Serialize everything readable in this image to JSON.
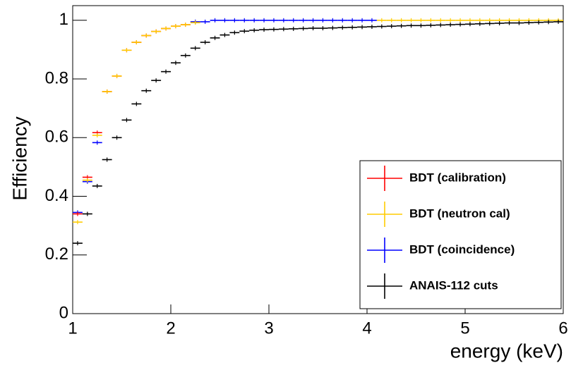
{
  "chart_data": {
    "type": "histogram-points",
    "x_label": "energy (keV)",
    "y_label": "Efficiency",
    "xlim": [
      1,
      6
    ],
    "xticks": [
      1,
      2,
      3,
      4,
      5,
      6
    ],
    "ylim": [
      0,
      1.05
    ],
    "yticks": [
      0,
      0.2,
      0.4,
      0.6,
      0.8,
      1
    ],
    "legend": "bottom-right",
    "series": [
      {
        "name": "BDT (coincidence)",
        "color": "#0000ff",
        "x": [
          1.05,
          1.15,
          1.25,
          2.25,
          2.35,
          2.45,
          2.55,
          2.65,
          2.75,
          2.85,
          2.95,
          3.05,
          3.15,
          3.25,
          3.35,
          3.45,
          3.55,
          3.65,
          3.75,
          3.85,
          3.95,
          4.05
        ],
        "values": [
          0.345,
          0.45,
          0.583,
          0.995,
          0.995,
          1,
          1,
          1,
          1,
          1,
          1,
          1,
          1,
          1,
          1,
          1,
          1,
          1,
          1,
          1,
          1,
          1
        ]
      },
      {
        "name": "BDT (calibration)",
        "color": "#ff0000",
        "x": [
          1.05,
          1.15,
          1.25,
          1.35,
          1.45,
          1.55,
          1.65,
          1.75,
          1.85,
          1.95,
          2.05,
          2.15
        ],
        "values": [
          0.34,
          0.465,
          0.617,
          0.757,
          0.81,
          0.898,
          0.925,
          0.948,
          0.962,
          0.972,
          0.98,
          0.985
        ]
      },
      {
        "name": "BDT (neutron cal)",
        "color": "#ffcc00",
        "x": [
          1.05,
          1.15,
          1.25,
          1.35,
          1.45,
          1.55,
          1.65,
          1.75,
          1.85,
          1.95,
          2.05,
          2.15,
          2.25,
          4.15,
          4.25,
          4.35,
          4.45,
          4.55,
          4.65,
          4.75,
          4.85,
          4.95,
          5.05,
          5.15,
          5.25,
          5.35,
          5.45,
          5.55,
          5.65,
          5.75,
          5.85,
          5.95
        ],
        "values": [
          0.312,
          0.455,
          0.608,
          0.757,
          0.81,
          0.898,
          0.925,
          0.948,
          0.962,
          0.972,
          0.98,
          0.985,
          0.992,
          1,
          1,
          1,
          1,
          1,
          1,
          1,
          1,
          1,
          1,
          1,
          1,
          1,
          1,
          1,
          1,
          1,
          1,
          1
        ]
      },
      {
        "name": "ANAIS-112 cuts",
        "color": "#000000",
        "x": [
          1.05,
          1.15,
          1.25,
          1.35,
          1.45,
          1.55,
          1.65,
          1.75,
          1.85,
          1.95,
          2.05,
          2.15,
          2.25,
          2.35,
          2.45,
          2.55,
          2.65,
          2.75,
          2.85,
          2.95,
          3.05,
          3.15,
          3.25,
          3.35,
          3.45,
          3.55,
          3.65,
          3.75,
          3.85,
          3.95,
          4.05,
          4.15,
          4.25,
          4.35,
          4.45,
          4.55,
          4.65,
          4.75,
          4.85,
          4.95,
          5.05,
          5.15,
          5.25,
          5.35,
          5.45,
          5.55,
          5.65,
          5.75,
          5.85,
          5.95
        ],
        "values": [
          0.24,
          0.34,
          0.435,
          0.525,
          0.6,
          0.66,
          0.715,
          0.76,
          0.795,
          0.825,
          0.855,
          0.88,
          0.905,
          0.925,
          0.94,
          0.95,
          0.958,
          0.963,
          0.966,
          0.968,
          0.969,
          0.97,
          0.971,
          0.972,
          0.973,
          0.973,
          0.974,
          0.975,
          0.976,
          0.977,
          0.978,
          0.979,
          0.98,
          0.981,
          0.982,
          0.982,
          0.983,
          0.984,
          0.985,
          0.986,
          0.987,
          0.988,
          0.989,
          0.99,
          0.991,
          0.991,
          0.992,
          0.993,
          0.994,
          0.995
        ]
      }
    ]
  }
}
